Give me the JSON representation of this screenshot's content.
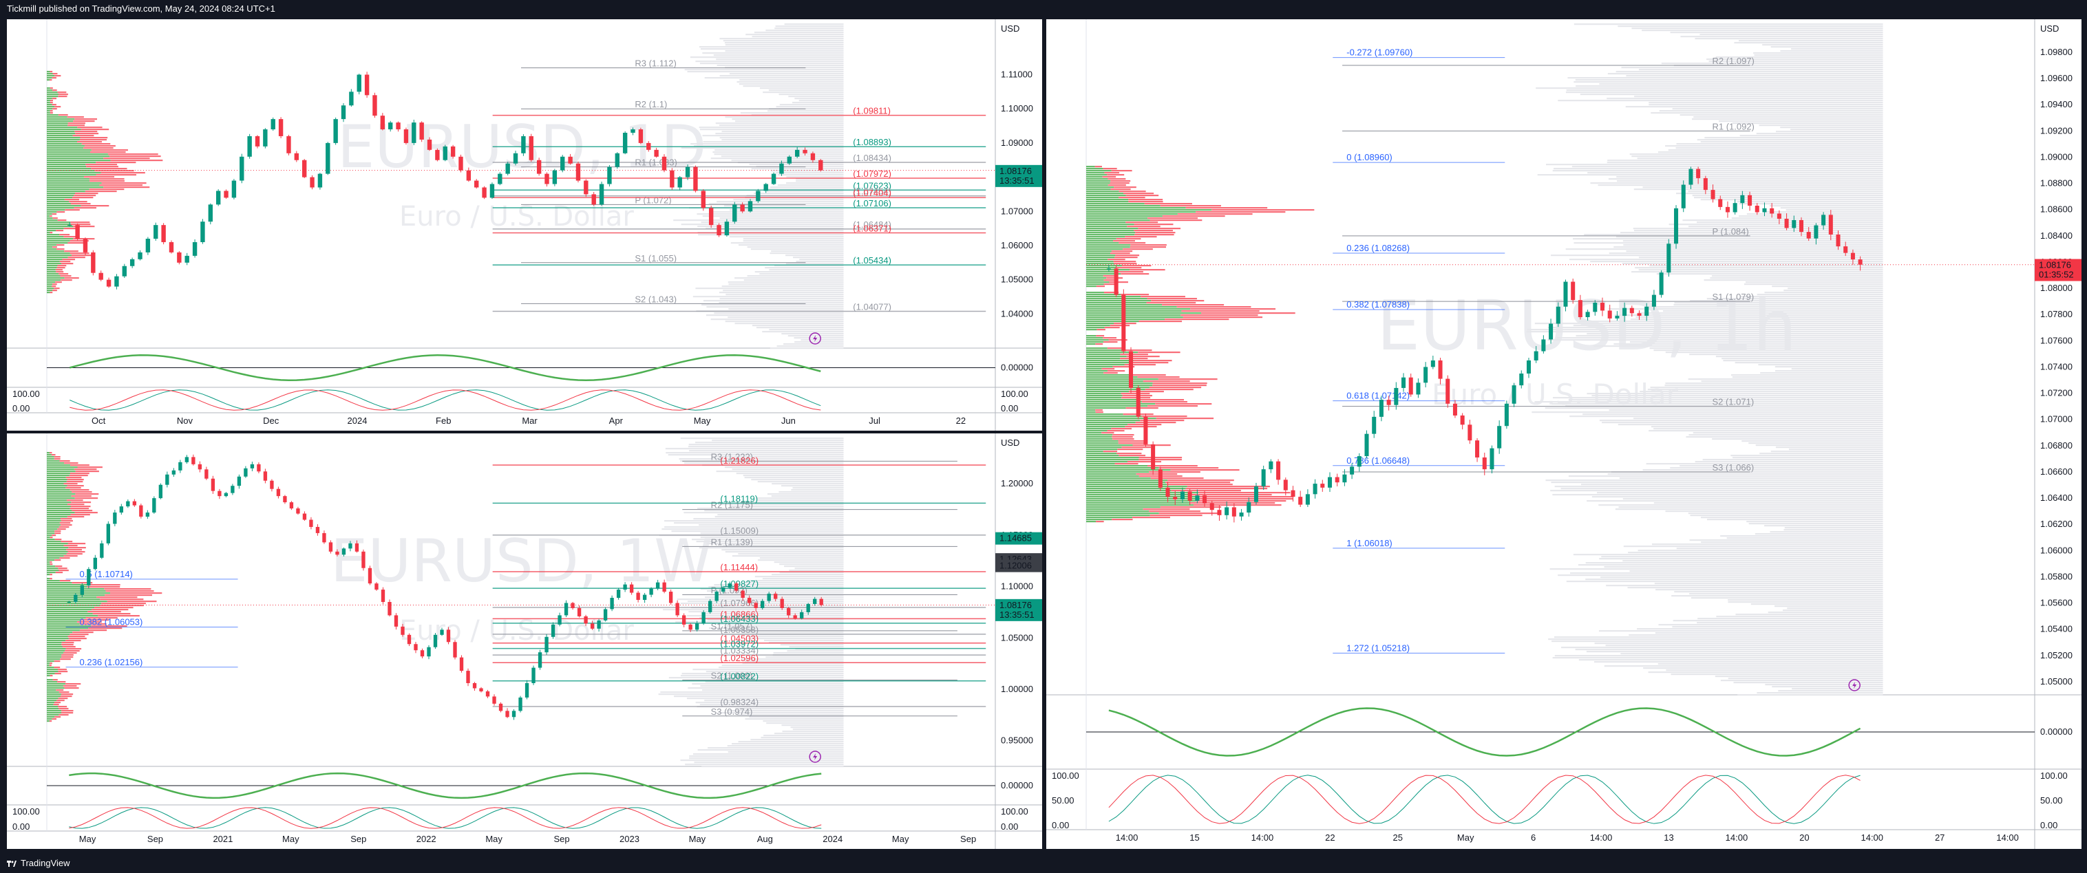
{
  "header": {
    "published": "Tickmill published on TradingView.com, May 24, 2024 08:24 UTC+1"
  },
  "footer": {
    "brand": "TradingView"
  },
  "colors": {
    "up": "#089981",
    "down": "#f23645",
    "green_vol": "#4caf50",
    "red_vol": "#f7525f",
    "accent_orange": "#ff9800",
    "fib_blue": "#2962ff"
  },
  "icons": [
    "lightning-icon",
    "tradingview-logo-icon"
  ],
  "chart_data": [
    {
      "id": "daily",
      "type": "candlestick",
      "watermark": "EURUSD, 1D",
      "sub_watermark": "Euro / U.S. Dollar",
      "currency": "USD",
      "ylim": [
        1.03,
        1.125
      ],
      "y_ticks": [
        "1.11000",
        "1.10000",
        "1.09000",
        "1.08000",
        "1.07000",
        "1.06000",
        "1.05000",
        "1.04000"
      ],
      "x_ticks": [
        "Oct",
        "Nov",
        "Dec",
        "2024",
        "Feb",
        "Mar",
        "Apr",
        "May",
        "Jun",
        "Jul",
        "22"
      ],
      "price_badge": {
        "value": "1.08176",
        "countdown": "13:35:51"
      },
      "levels": [
        {
          "label": "R3 (1.112)",
          "value": 1.112
        },
        {
          "label": "R2 (1.1)",
          "value": 1.1
        },
        {
          "label": "R1 (1.083)",
          "value": 1.083
        },
        {
          "label": "P (1.072)",
          "value": 1.072
        },
        {
          "label": "S1 (1.055)",
          "value": 1.055
        },
        {
          "label": "S2 (1.043)",
          "value": 1.043
        }
      ],
      "right_labels": [
        {
          "label": "(1.09811)",
          "value": 1.09811
        },
        {
          "label": "(1.08893)",
          "value": 1.08893
        },
        {
          "label": "(1.08434)",
          "value": 1.08434
        },
        {
          "label": "(1.07972)",
          "value": 1.07972
        },
        {
          "label": "(1.07623)",
          "value": 1.07623
        },
        {
          "label": "(1.07454)",
          "value": 1.07454
        },
        {
          "label": "(1.07404)",
          "value": 1.07404
        },
        {
          "label": "(1.07106)",
          "value": 1.07106
        },
        {
          "label": "(1.06484)",
          "value": 1.06484
        },
        {
          "label": "(1.06371)",
          "value": 1.06371
        },
        {
          "label": "(1.05434)",
          "value": 1.05434
        },
        {
          "label": "(1.04077)",
          "value": 1.04077
        }
      ],
      "close_series": [
        1.066,
        1.062,
        1.058,
        1.052,
        1.05,
        1.048,
        1.051,
        1.054,
        1.056,
        1.058,
        1.062,
        1.066,
        1.061,
        1.058,
        1.055,
        1.057,
        1.061,
        1.067,
        1.072,
        1.076,
        1.074,
        1.079,
        1.086,
        1.092,
        1.089,
        1.094,
        1.097,
        1.092,
        1.087,
        1.085,
        1.08,
        1.077,
        1.081,
        1.09,
        1.097,
        1.101,
        1.105,
        1.11,
        1.104,
        1.098,
        1.094,
        1.096,
        1.094,
        1.09,
        1.096,
        1.091,
        1.088,
        1.085,
        1.089,
        1.086,
        1.082,
        1.079,
        1.077,
        1.074,
        1.078,
        1.081,
        1.084,
        1.087,
        1.092,
        1.085,
        1.081,
        1.078,
        1.082,
        1.086,
        1.084,
        1.079,
        1.075,
        1.072,
        1.078,
        1.083,
        1.087,
        1.093,
        1.094,
        1.09,
        1.088,
        1.086,
        1.082,
        1.077,
        1.08,
        1.083,
        1.076,
        1.071,
        1.066,
        1.063,
        1.067,
        1.072,
        1.07,
        1.073,
        1.076,
        1.078,
        1.081,
        1.084,
        1.086,
        1.088,
        1.087,
        1.085,
        1.082
      ],
      "x_range": [
        0,
        136
      ],
      "oscillator_ticks": [
        "0.00000"
      ],
      "stoch_ticks": [
        "100.00",
        "0.00"
      ]
    },
    {
      "id": "weekly",
      "type": "candlestick",
      "watermark": "EURUSD, 1W",
      "sub_watermark": "Euro / U.S. Dollar",
      "currency": "USD",
      "ylim": [
        0.925,
        1.245
      ],
      "y_ticks": [
        "1.20000",
        "1.15000",
        "1.10000",
        "1.05000",
        "1.00000",
        "0.95000"
      ],
      "x_ticks": [
        "May",
        "Sep",
        "2021",
        "May",
        "Sep",
        "2022",
        "May",
        "Sep",
        "2023",
        "May",
        "Aug",
        "2024",
        "May",
        "Sep"
      ],
      "price_badges": [
        {
          "value": "1.14685"
        },
        {
          "value": "1.12643"
        },
        {
          "value": "1.12006"
        },
        {
          "value": "1.08176",
          "countdown": "13:35:51"
        }
      ],
      "levels": [
        {
          "label": "R3 (1.222)",
          "value": 1.222
        },
        {
          "label": "R2 (1.175)",
          "value": 1.175
        },
        {
          "label": "R1 (1.139)",
          "value": 1.139
        },
        {
          "label": "P (1.092)",
          "value": 1.092
        },
        {
          "label": "S1 (1.057)",
          "value": 1.057
        },
        {
          "label": "S2 (1.009)",
          "value": 1.009
        },
        {
          "label": "S3 (0.974)",
          "value": 0.974
        }
      ],
      "right_labels": [
        {
          "label": "(1.21826)",
          "value": 1.21826
        },
        {
          "label": "(1.18119)",
          "value": 1.18119
        },
        {
          "label": "(1.15009)",
          "value": 1.15009
        },
        {
          "label": "(1.11444)",
          "value": 1.11444
        },
        {
          "label": "(1.09827)",
          "value": 1.09827
        },
        {
          "label": "(1.07966)",
          "value": 1.07966
        },
        {
          "label": "(1.06866)",
          "value": 1.06866
        },
        {
          "label": "(1.06433)",
          "value": 1.06433
        },
        {
          "label": "(1.05358)",
          "value": 1.05358
        },
        {
          "label": "(1.04503)",
          "value": 1.04503
        },
        {
          "label": "(1.03972)",
          "value": 1.03972
        },
        {
          "label": "(1.03334)",
          "value": 1.03334
        },
        {
          "label": "(1.02596)",
          "value": 1.02596
        },
        {
          "label": "(1.00822)",
          "value": 1.00822
        },
        {
          "label": "(0.98324)",
          "value": 0.98324
        }
      ],
      "fib_labels": [
        {
          "label": "0.5 (1.10714)",
          "value": 1.10714
        },
        {
          "label": "0.382 (1.06053)",
          "value": 1.06053
        },
        {
          "label": "0.236 (1.02156)",
          "value": 1.02156
        }
      ],
      "close_series": [
        1.085,
        1.092,
        1.101,
        1.117,
        1.128,
        1.142,
        1.161,
        1.172,
        1.178,
        1.183,
        1.179,
        1.168,
        1.172,
        1.186,
        1.199,
        1.209,
        1.213,
        1.221,
        1.226,
        1.219,
        1.214,
        1.205,
        1.193,
        1.188,
        1.191,
        1.198,
        1.207,
        1.215,
        1.219,
        1.212,
        1.203,
        1.195,
        1.188,
        1.182,
        1.176,
        1.171,
        1.165,
        1.158,
        1.152,
        1.143,
        1.134,
        1.131,
        1.137,
        1.142,
        1.134,
        1.118,
        1.103,
        1.097,
        1.085,
        1.072,
        1.061,
        1.053,
        1.044,
        1.038,
        1.032,
        1.041,
        1.053,
        1.058,
        1.046,
        1.031,
        1.018,
        1.006,
        1.001,
        0.998,
        0.993,
        0.986,
        0.979,
        0.973,
        0.979,
        0.992,
        1.006,
        1.021,
        1.036,
        1.051,
        1.063,
        1.072,
        1.084,
        1.079,
        1.071,
        1.064,
        1.059,
        1.067,
        1.078,
        1.089,
        1.097,
        1.102,
        1.094,
        1.087,
        1.092,
        1.098,
        1.104,
        1.095,
        1.084,
        1.072,
        1.063,
        1.058,
        1.064,
        1.075,
        1.086,
        1.095,
        1.099,
        1.103,
        1.096,
        1.089,
        1.084,
        1.079,
        1.086,
        1.093,
        1.088,
        1.079,
        1.072,
        1.069,
        1.075,
        1.083,
        1.088,
        1.082
      ],
      "x_range": [
        0,
        215
      ],
      "oscillator_ticks": [
        "0.00000"
      ],
      "stoch_ticks": [
        "100.00",
        "0.00"
      ]
    },
    {
      "id": "intraday",
      "type": "candlestick",
      "watermark": "EURUSD, 1h",
      "sub_watermark": "Euro / U.S. Dollar",
      "currency": "USD",
      "ylim": [
        1.049,
        1.1002
      ],
      "y_ticks": [
        "1.09800",
        "1.09600",
        "1.09400",
        "1.09200",
        "1.09000",
        "1.08800",
        "1.08600",
        "1.08400",
        "1.08200",
        "1.08000",
        "1.07800",
        "1.07600",
        "1.07400",
        "1.07200",
        "1.07000",
        "1.06800",
        "1.06600",
        "1.06400",
        "1.06200",
        "1.06000",
        "1.05800",
        "1.05600",
        "1.05400",
        "1.05200",
        "1.05000"
      ],
      "x_ticks": [
        "14:00",
        "15",
        "14:00",
        "22",
        "25",
        "May",
        "6",
        "14:00",
        "13",
        "14:00",
        "20",
        "14:00",
        "27",
        "14:00"
      ],
      "price_badge": {
        "value": "1.08176",
        "countdown": "01:35:52"
      },
      "levels": [
        {
          "label": "R2 (1.097)",
          "value": 1.097
        },
        {
          "label": "R1 (1.092)",
          "value": 1.092
        },
        {
          "label": "P (1.084)",
          "value": 1.084
        },
        {
          "label": "S1 (1.079)",
          "value": 1.079
        },
        {
          "label": "S2 (1.071)",
          "value": 1.071
        },
        {
          "label": "S3 (1.066)",
          "value": 1.066
        }
      ],
      "fib_labels": [
        {
          "label": "-0.272 (1.09760)",
          "value": 1.0976
        },
        {
          "label": "0 (1.08960)",
          "value": 1.0896
        },
        {
          "label": "0.236 (1.08268)",
          "value": 1.08268
        },
        {
          "label": "0.382 (1.07838)",
          "value": 1.07838
        },
        {
          "label": "0.618 (1.07142)",
          "value": 1.07142
        },
        {
          "label": "0.786 (1.06648)",
          "value": 1.06648
        },
        {
          "label": "1 (1.06018)",
          "value": 1.06018
        },
        {
          "label": "1.272 (1.05218)",
          "value": 1.05218
        }
      ],
      "close_series": [
        1.0815,
        1.0795,
        1.0752,
        1.0724,
        1.0702,
        1.0681,
        1.0662,
        1.0648,
        1.0641,
        1.0639,
        1.0645,
        1.0638,
        1.0642,
        1.0636,
        1.0631,
        1.0627,
        1.0633,
        1.0626,
        1.0629,
        1.0637,
        1.0649,
        1.0662,
        1.0668,
        1.0654,
        1.0646,
        1.0641,
        1.0635,
        1.0643,
        1.0651,
        1.0648,
        1.0656,
        1.0652,
        1.0658,
        1.0664,
        1.0672,
        1.0689,
        1.0702,
        1.0715,
        1.0711,
        1.0724,
        1.0732,
        1.0719,
        1.0728,
        1.074,
        1.0745,
        1.0731,
        1.0712,
        1.0703,
        1.0696,
        1.0684,
        1.0671,
        1.0662,
        1.0678,
        1.0695,
        1.0712,
        1.0726,
        1.0735,
        1.0745,
        1.0752,
        1.0761,
        1.0773,
        1.0786,
        1.0805,
        1.0791,
        1.0778,
        1.0782,
        1.0789,
        1.0783,
        1.0777,
        1.0779,
        1.0785,
        1.0781,
        1.0779,
        1.0786,
        1.0795,
        1.0812,
        1.0834,
        1.0861,
        1.0879,
        1.0891,
        1.0884,
        1.0875,
        1.0868,
        1.0862,
        1.0858,
        1.0865,
        1.0871,
        1.0863,
        1.0858,
        1.0861,
        1.0857,
        1.0853,
        1.0846,
        1.0852,
        1.0843,
        1.0838,
        1.0848,
        1.0856,
        1.0841,
        1.0832,
        1.0827,
        1.0822,
        1.0818
      ],
      "x_range": [
        0,
        166
      ],
      "oscillator_ticks": [
        "0.00000"
      ],
      "stoch_ticks": [
        "100.00",
        "50.00",
        "0.00"
      ]
    }
  ]
}
